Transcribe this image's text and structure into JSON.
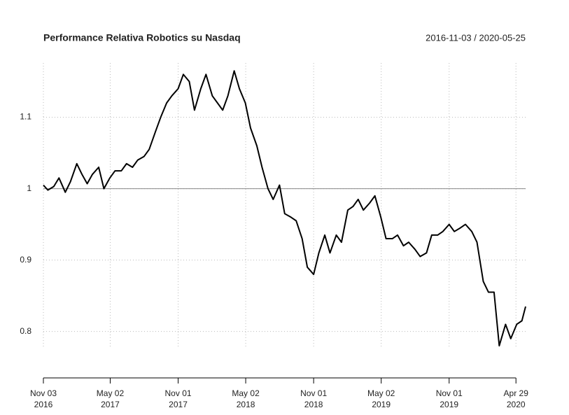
{
  "chart_data": {
    "type": "line",
    "title": "Performance Relativa Robotics su Nasdaq",
    "subtitle": "2016-11-03 / 2020-05-25",
    "x": [
      "2016-11-03",
      "2016-11-15",
      "2016-12-01",
      "2016-12-15",
      "2017-01-01",
      "2017-01-15",
      "2017-02-01",
      "2017-02-15",
      "2017-03-01",
      "2017-03-15",
      "2017-04-01",
      "2017-04-15",
      "2017-05-01",
      "2017-05-15",
      "2017-06-01",
      "2017-06-15",
      "2017-07-01",
      "2017-07-15",
      "2017-08-01",
      "2017-08-15",
      "2017-09-01",
      "2017-09-15",
      "2017-10-01",
      "2017-10-15",
      "2017-11-01",
      "2017-11-15",
      "2017-12-01",
      "2017-12-15",
      "2018-01-01",
      "2018-01-15",
      "2018-02-01",
      "2018-02-15",
      "2018-03-01",
      "2018-03-15",
      "2018-04-01",
      "2018-04-15",
      "2018-05-01",
      "2018-05-15",
      "2018-06-01",
      "2018-06-15",
      "2018-07-01",
      "2018-07-15",
      "2018-08-01",
      "2018-08-15",
      "2018-09-01",
      "2018-09-15",
      "2018-10-01",
      "2018-10-15",
      "2018-11-01",
      "2018-11-15",
      "2018-12-01",
      "2018-12-15",
      "2019-01-01",
      "2019-01-15",
      "2019-02-01",
      "2019-02-15",
      "2019-03-01",
      "2019-03-15",
      "2019-04-01",
      "2019-04-15",
      "2019-05-01",
      "2019-05-15",
      "2019-06-01",
      "2019-06-15",
      "2019-07-01",
      "2019-07-15",
      "2019-08-01",
      "2019-08-15",
      "2019-09-01",
      "2019-09-15",
      "2019-10-01",
      "2019-10-15",
      "2019-11-01",
      "2019-11-15",
      "2019-12-01",
      "2019-12-15",
      "2020-01-01",
      "2020-01-15",
      "2020-02-01",
      "2020-02-15",
      "2020-03-01",
      "2020-03-15",
      "2020-04-01",
      "2020-04-15",
      "2020-05-01",
      "2020-05-15",
      "2020-05-25"
    ],
    "series": [
      {
        "color": "#000000",
        "values": [
          1.005,
          0.998,
          1.003,
          1.015,
          0.995,
          1.01,
          1.035,
          1.02,
          1.007,
          1.02,
          1.03,
          1.0,
          1.015,
          1.025,
          1.025,
          1.035,
          1.03,
          1.04,
          1.045,
          1.055,
          1.08,
          1.1,
          1.12,
          1.13,
          1.14,
          1.16,
          1.15,
          1.11,
          1.14,
          1.16,
          1.13,
          1.12,
          1.11,
          1.13,
          1.165,
          1.14,
          1.12,
          1.085,
          1.06,
          1.03,
          1.0,
          0.985,
          1.005,
          0.965,
          0.96,
          0.955,
          0.93,
          0.89,
          0.88,
          0.91,
          0.935,
          0.91,
          0.935,
          0.925,
          0.97,
          0.975,
          0.985,
          0.97,
          0.98,
          0.99,
          0.96,
          0.93,
          0.93,
          0.935,
          0.92,
          0.925,
          0.915,
          0.905,
          0.91,
          0.935,
          0.935,
          0.94,
          0.95,
          0.94,
          0.945,
          0.95,
          0.94,
          0.925,
          0.87,
          0.855,
          0.855,
          0.78,
          0.81,
          0.79,
          0.81,
          0.815,
          0.835
        ]
      }
    ],
    "xlim": [
      "2016-11-03",
      "2020-05-25"
    ],
    "ylim": [
      0.735,
      1.176
    ],
    "yticks": [
      0.8,
      0.9,
      1.0,
      1.1
    ],
    "hline": 1.0,
    "xticks": [
      {
        "value": "2016-11-03",
        "label": [
          "Nov 03",
          "2016"
        ]
      },
      {
        "value": "2017-05-02",
        "label": [
          "May 02",
          "2017"
        ]
      },
      {
        "value": "2017-11-01",
        "label": [
          "Nov 01",
          "2017"
        ]
      },
      {
        "value": "2018-05-02",
        "label": [
          "May 02",
          "2018"
        ]
      },
      {
        "value": "2018-11-01",
        "label": [
          "Nov 01",
          "2018"
        ]
      },
      {
        "value": "2019-05-02",
        "label": [
          "May 02",
          "2019"
        ]
      },
      {
        "value": "2019-11-01",
        "label": [
          "Nov 01",
          "2019"
        ]
      },
      {
        "value": "2020-04-29",
        "label": [
          "Apr 29",
          "2020"
        ]
      }
    ],
    "grid": true
  }
}
